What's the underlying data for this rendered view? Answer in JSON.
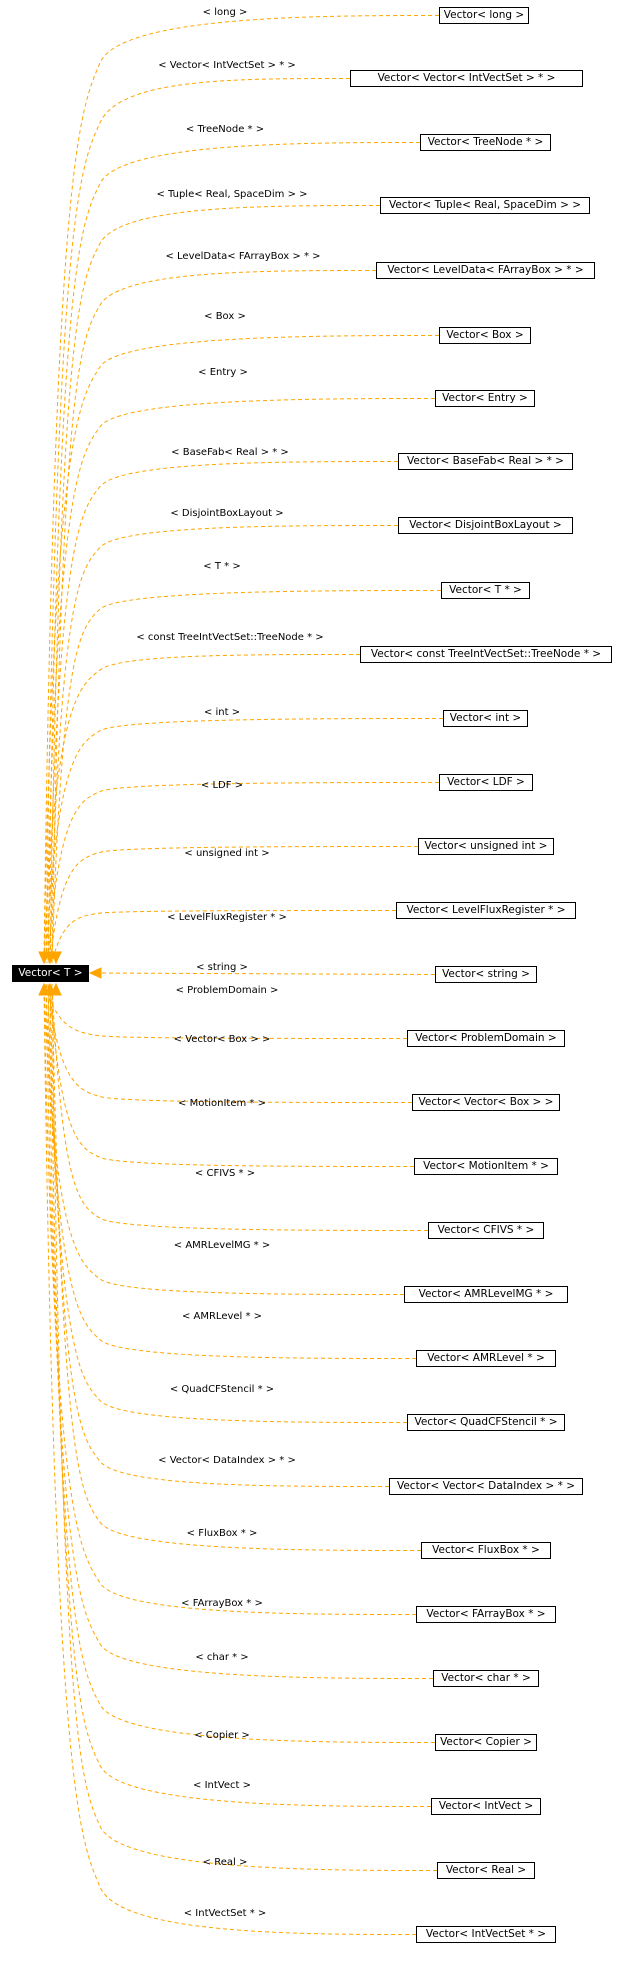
{
  "root": {
    "label": "Vector< T >"
  },
  "edge_color": "#ffa500",
  "nodes": [
    {
      "label": "Vector< long >",
      "edge": "< long >"
    },
    {
      "label": "Vector< Vector< IntVectSet > * >",
      "edge": "< Vector< IntVectSet > * >"
    },
    {
      "label": "Vector< TreeNode * >",
      "edge": "< TreeNode * >"
    },
    {
      "label": "Vector< Tuple< Real, SpaceDim > >",
      "edge": "< Tuple< Real, SpaceDim > >"
    },
    {
      "label": "Vector< LevelData< FArrayBox > * >",
      "edge": "< LevelData< FArrayBox > * >"
    },
    {
      "label": "Vector< Box >",
      "edge": "< Box >"
    },
    {
      "label": "Vector< Entry >",
      "edge": "< Entry >"
    },
    {
      "label": "Vector< BaseFab< Real > * >",
      "edge": "< BaseFab< Real > * >"
    },
    {
      "label": "Vector< DisjointBoxLayout >",
      "edge": "< DisjointBoxLayout >"
    },
    {
      "label": "Vector< T * >",
      "edge": "< T * >"
    },
    {
      "label": "Vector< const TreeIntVectSet::TreeNode * >",
      "edge": "< const TreeIntVectSet::TreeNode * >"
    },
    {
      "label": "Vector< int >",
      "edge": "< int >"
    },
    {
      "label": "Vector< LDF >",
      "edge": "< LDF >"
    },
    {
      "label": "Vector< unsigned int >",
      "edge": "< unsigned int >"
    },
    {
      "label": "Vector< LevelFluxRegister * >",
      "edge": "< LevelFluxRegister * >"
    },
    {
      "label": "Vector< string >",
      "edge": "< string >"
    },
    {
      "label": "Vector< ProblemDomain >",
      "edge": "< ProblemDomain >"
    },
    {
      "label": "Vector< Vector< Box > >",
      "edge": "< Vector< Box > >"
    },
    {
      "label": "Vector< MotionItem * >",
      "edge": "< MotionItem * >"
    },
    {
      "label": "Vector< CFIVS * >",
      "edge": "< CFIVS * >"
    },
    {
      "label": "Vector< AMRLevelMG * >",
      "edge": "< AMRLevelMG * >"
    },
    {
      "label": "Vector< AMRLevel * >",
      "edge": "< AMRLevel * >"
    },
    {
      "label": "Vector< QuadCFStencil * >",
      "edge": "< QuadCFStencil * >"
    },
    {
      "label": "Vector< Vector< DataIndex > * >",
      "edge": "< Vector< DataIndex > * >"
    },
    {
      "label": "Vector< FluxBox * >",
      "edge": "< FluxBox * >"
    },
    {
      "label": "Vector< FArrayBox * >",
      "edge": "< FArrayBox * >"
    },
    {
      "label": "Vector< char * >",
      "edge": "< char * >"
    },
    {
      "label": "Vector< Copier >",
      "edge": "< Copier >"
    },
    {
      "label": "Vector< IntVect >",
      "edge": "< IntVect >"
    },
    {
      "label": "Vector< Real >",
      "edge": "< Real >"
    },
    {
      "label": "Vector< IntVectSet * >",
      "edge": "< IntVectSet * >"
    }
  ]
}
